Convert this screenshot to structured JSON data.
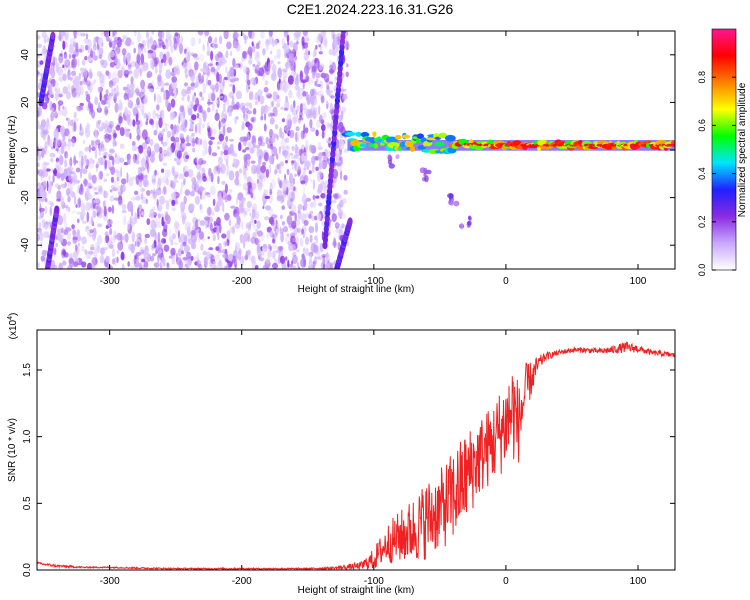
{
  "figure": {
    "title": "C2E1.2024.223.16.31.G26"
  },
  "chart_data": [
    {
      "type": "heatmap",
      "title": "C2E1.2024.223.16.31.G26",
      "xlabel": "Height of straight line (km)",
      "ylabel": "Frequency (Hz)",
      "xlim": [
        -355,
        128
      ],
      "ylim": [
        -50,
        50
      ],
      "x_ticks": [
        -300,
        -200,
        -100,
        0,
        100
      ],
      "y_ticks": [
        -40,
        -20,
        0,
        20,
        40
      ],
      "colorbar": {
        "label": "Normalized spectral amplitude",
        "range": [
          0,
          1
        ],
        "ticks": [
          0.0,
          0.2,
          0.4,
          0.6,
          0.8
        ],
        "tick_labels": [
          "0.0",
          "0.2",
          "0.4",
          "0.6",
          "0.8"
        ],
        "colormap": [
          "#ffffff",
          "#c9a8ff",
          "#8a2be2",
          "#2020ff",
          "#00e5ff",
          "#00ff00",
          "#ffff00",
          "#ff8000",
          "#ff0000",
          "#ff1493"
        ]
      },
      "regions": [
        {
          "kind": "noise",
          "x_range": [
            -355,
            -120
          ],
          "y_range": [
            -50,
            50
          ],
          "amplitude": 0.15
        },
        {
          "kind": "aliased-trace",
          "x": [
            -352,
            -343
          ],
          "y": [
            20,
            48
          ]
        },
        {
          "kind": "aliased-trace",
          "x": [
            -347,
            -340
          ],
          "y": [
            -50,
            -25
          ]
        },
        {
          "kind": "aliased-trace",
          "x": [
            -137,
            -123
          ],
          "y": [
            -40,
            50
          ]
        },
        {
          "kind": "aliased-trace",
          "x": [
            -128,
            -118
          ],
          "y": [
            -50,
            -30
          ]
        },
        {
          "kind": "carrier-line",
          "x_range": [
            -120,
            128
          ],
          "y": [
            4,
            3,
            2.5,
            2,
            2,
            2
          ],
          "x": [
            -120,
            -80,
            -40,
            0,
            60,
            128
          ],
          "amplitude": 0.9
        },
        {
          "kind": "scatter-tail",
          "x": [
            -85,
            -60,
            -40,
            -30
          ],
          "y": [
            -5,
            -10,
            -20,
            -30
          ]
        }
      ]
    },
    {
      "type": "line",
      "xlabel": "Height of straight line (km)",
      "ylabel": "SNR (10 * v/v)",
      "y_multiplier": "(x10^4)",
      "y_multiplier_base": "(x10",
      "y_multiplier_exp": "4",
      "y_multiplier_close": ")",
      "xlim": [
        -355,
        128
      ],
      "ylim": [
        0,
        1.8
      ],
      "x_ticks": [
        -300,
        -200,
        -100,
        0,
        100
      ],
      "y_ticks": [
        0.0,
        0.5,
        1.0,
        1.5
      ],
      "y_tick_labels": [
        "0.0",
        "0.5",
        "1.0",
        "1.5"
      ],
      "series": [
        {
          "color": "#ee2222",
          "x": [
            -355,
            -340,
            -320,
            -300,
            -280,
            -250,
            -220,
            -200,
            -180,
            -150,
            -130,
            -110,
            -100,
            -90,
            -80,
            -70,
            -60,
            -50,
            -40,
            -30,
            -20,
            -10,
            0,
            5,
            10,
            15,
            20,
            25,
            30,
            40,
            50,
            60,
            70,
            80,
            90,
            100,
            110,
            120,
            128
          ],
          "y": [
            0.05,
            0.03,
            0.02,
            0.02,
            0.015,
            0.01,
            0.01,
            0.01,
            0.01,
            0.01,
            0.015,
            0.03,
            0.08,
            0.2,
            0.25,
            0.3,
            0.38,
            0.45,
            0.55,
            0.7,
            0.85,
            0.95,
            1.1,
            1.2,
            1.1,
            1.35,
            1.45,
            1.55,
            1.6,
            1.63,
            1.65,
            1.65,
            1.64,
            1.65,
            1.67,
            1.66,
            1.63,
            1.62,
            1.61
          ],
          "jitter": [
            0.01,
            0.01,
            0.005,
            0.005,
            0.005,
            0.005,
            0.005,
            0.005,
            0.005,
            0.005,
            0.01,
            0.03,
            0.08,
            0.15,
            0.2,
            0.25,
            0.3,
            0.3,
            0.35,
            0.35,
            0.3,
            0.3,
            0.35,
            0.4,
            0.3,
            0.2,
            0.12,
            0.06,
            0.03,
            0.02,
            0.02,
            0.02,
            0.02,
            0.03,
            0.04,
            0.03,
            0.02,
            0.02,
            0.02
          ]
        }
      ]
    }
  ]
}
